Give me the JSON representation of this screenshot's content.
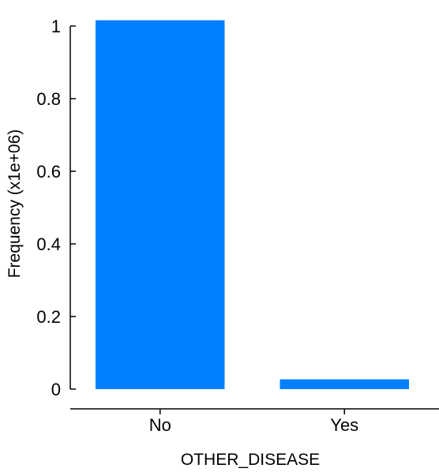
{
  "chart_data": {
    "type": "bar",
    "categories": [
      "No",
      "Yes"
    ],
    "values": [
      1.016,
      0.027
    ],
    "xlabel": "OTHER_DISEASE",
    "ylabel": "Frequency (x1e+06)",
    "ylim": [
      0,
      1
    ],
    "yticks": [
      "0",
      "0.2",
      "0.4",
      "0.6",
      "0.8",
      "1"
    ],
    "grid": false,
    "bar_color": "#0080ff"
  }
}
